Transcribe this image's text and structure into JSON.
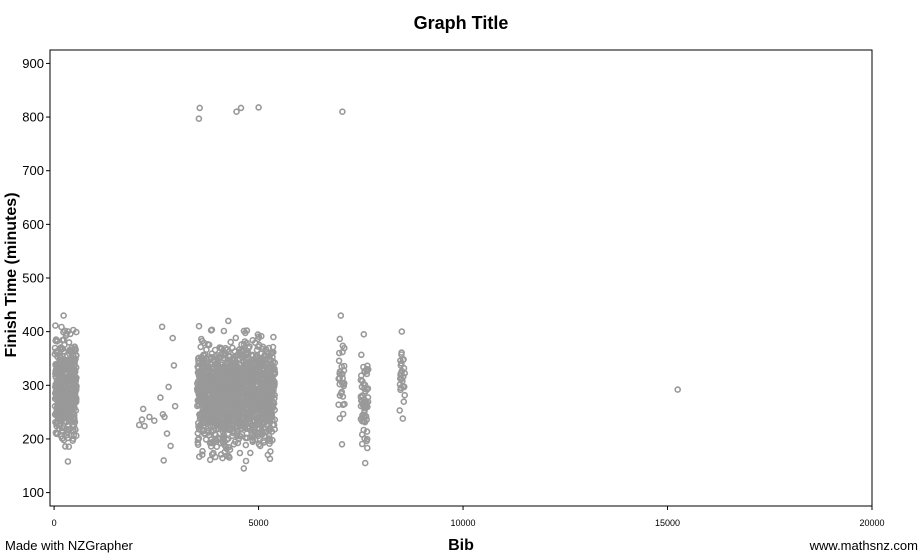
{
  "chart_data": {
    "type": "scatter",
    "title": "Graph Title",
    "xlabel": "Bib",
    "ylabel": "Finish Time (minutes)",
    "xlim": [
      -100,
      20000
    ],
    "ylim": [
      75,
      925
    ],
    "xticks": [
      0,
      5000,
      10000,
      15000,
      20000
    ],
    "xtick_labels": [
      "0",
      "5000",
      "10000",
      "15000",
      "20000"
    ],
    "yticks": [
      100,
      200,
      300,
      400,
      500,
      600,
      700,
      800,
      900
    ],
    "ytick_labels": [
      "100",
      "200",
      "300",
      "400",
      "500",
      "600",
      "700",
      "800",
      "900"
    ],
    "grid": false,
    "marker_color": "#999999",
    "clusters": [
      {
        "x_range": [
          20,
          550
        ],
        "y_range": [
          158,
          430
        ],
        "count": 450
      },
      {
        "x_range": [
          3500,
          5400
        ],
        "y_range": [
          145,
          420
        ],
        "count": 1500
      },
      {
        "x_range": [
          6950,
          7100
        ],
        "y_range": [
          190,
          430
        ],
        "count": 30
      },
      {
        "x_range": [
          7500,
          7680
        ],
        "y_range": [
          155,
          395
        ],
        "count": 60
      },
      {
        "x_range": [
          8450,
          8580
        ],
        "y_range": [
          238,
          400
        ],
        "count": 25
      }
    ],
    "points": [
      {
        "x": 3560,
        "y": 817
      },
      {
        "x": 3540,
        "y": 797
      },
      {
        "x": 4460,
        "y": 810
      },
      {
        "x": 4570,
        "y": 817
      },
      {
        "x": 5000,
        "y": 818
      },
      {
        "x": 7050,
        "y": 810
      },
      {
        "x": 15250,
        "y": 292
      },
      {
        "x": 2180,
        "y": 256
      },
      {
        "x": 2150,
        "y": 236
      },
      {
        "x": 2210,
        "y": 224
      },
      {
        "x": 2330,
        "y": 241
      },
      {
        "x": 2450,
        "y": 234
      },
      {
        "x": 2600,
        "y": 277
      },
      {
        "x": 2640,
        "y": 409
      },
      {
        "x": 2660,
        "y": 246
      },
      {
        "x": 2680,
        "y": 160
      },
      {
        "x": 2760,
        "y": 210
      },
      {
        "x": 2800,
        "y": 297
      },
      {
        "x": 2850,
        "y": 187
      },
      {
        "x": 2900,
        "y": 388
      },
      {
        "x": 2930,
        "y": 337
      },
      {
        "x": 2960,
        "y": 261
      },
      {
        "x": 2080,
        "y": 226
      },
      {
        "x": 2700,
        "y": 241
      }
    ]
  },
  "footer": {
    "left": "Made with NZGrapher",
    "right": "www.mathsnz.com"
  }
}
